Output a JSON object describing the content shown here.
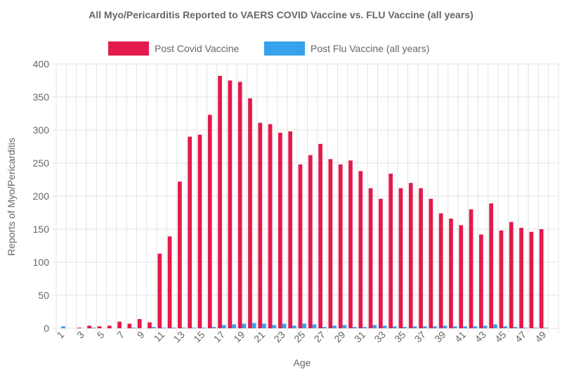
{
  "chart_data": {
    "type": "bar",
    "title": "All Myo/Pericarditis Reported to VAERS COVID Vaccine vs. FLU Vaccine (all years)",
    "xlabel": "Age",
    "ylabel": "Reports of Myo/Pericarditis",
    "ylim": [
      0,
      400
    ],
    "yticks": [
      0,
      50,
      100,
      150,
      200,
      250,
      300,
      350,
      400
    ],
    "grid": true,
    "legend_position": "top",
    "categories": [
      "1",
      "2",
      "3",
      "4",
      "5",
      "6",
      "7",
      "8",
      "9",
      "10",
      "11",
      "12",
      "13",
      "14",
      "15",
      "16",
      "17",
      "18",
      "19",
      "20",
      "21",
      "22",
      "23",
      "24",
      "25",
      "26",
      "27",
      "28",
      "29",
      "30",
      "31",
      "32",
      "33",
      "34",
      "35",
      "36",
      "37",
      "38",
      "39",
      "40",
      "41",
      "42",
      "43",
      "44",
      "45",
      "46",
      "47",
      "48",
      "49",
      "50"
    ],
    "xtick_labels": [
      "1",
      "3",
      "5",
      "7",
      "9",
      "11",
      "13",
      "15",
      "17",
      "19",
      "21",
      "23",
      "25",
      "27",
      "29",
      "31",
      "33",
      "35",
      "37",
      "39",
      "41",
      "43",
      "45",
      "47",
      "49"
    ],
    "series": [
      {
        "name": "Post Covid Vaccine",
        "color": "#e31a4b",
        "values": [
          0,
          0,
          1,
          4,
          3,
          4,
          10,
          7,
          14,
          9,
          113,
          139,
          222,
          290,
          293,
          323,
          382,
          375,
          373,
          348,
          311,
          309,
          296,
          298,
          248,
          262,
          279,
          256,
          248,
          254,
          238,
          212,
          196,
          234,
          212,
          220,
          212,
          196,
          174,
          166,
          156,
          180,
          142,
          189,
          148,
          161,
          152,
          146,
          150,
          0
        ]
      },
      {
        "name": "Post Flu Vaccine (all years)",
        "color": "#36a2eb",
        "values": [
          3,
          0,
          0,
          1,
          0,
          0,
          0,
          1,
          0,
          2,
          1,
          1,
          1,
          1,
          1,
          2,
          5,
          6,
          7,
          8,
          7,
          5,
          7,
          4,
          7,
          6,
          2,
          4,
          5,
          2,
          2,
          5,
          4,
          3,
          2,
          3,
          3,
          3,
          4,
          3,
          3,
          3,
          4,
          6,
          3,
          2,
          1,
          1,
          1,
          0
        ]
      }
    ]
  }
}
